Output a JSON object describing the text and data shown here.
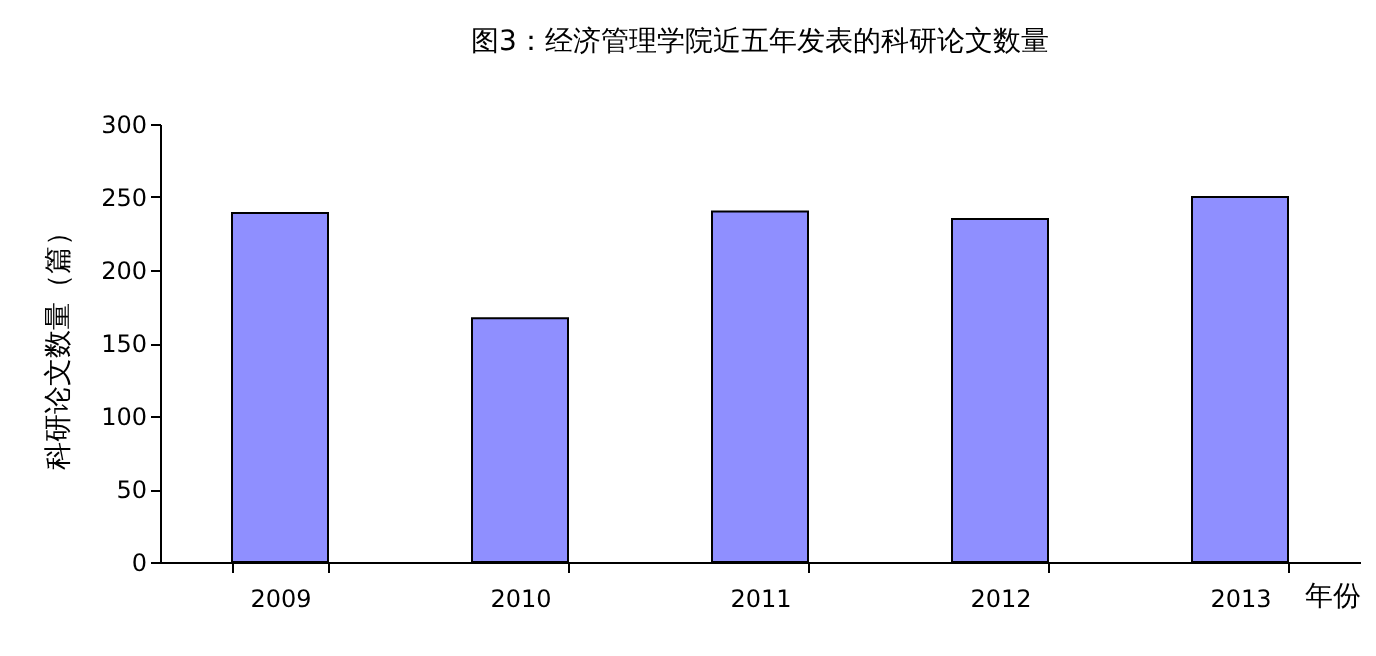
{
  "chart_data": {
    "type": "bar",
    "title": "图3：经济管理学院近五年发表的科研论文数量",
    "xlabel": "年份",
    "ylabel": "科研论文数量（篇）",
    "categories": [
      "2009",
      "2010",
      "2011",
      "2012",
      "2013"
    ],
    "values": [
      239,
      167,
      240,
      235,
      250
    ],
    "color": "#8f8fff",
    "ylim": [
      0,
      300
    ],
    "yticks": [
      0,
      50,
      100,
      150,
      200,
      250,
      300
    ],
    "grid": false
  }
}
